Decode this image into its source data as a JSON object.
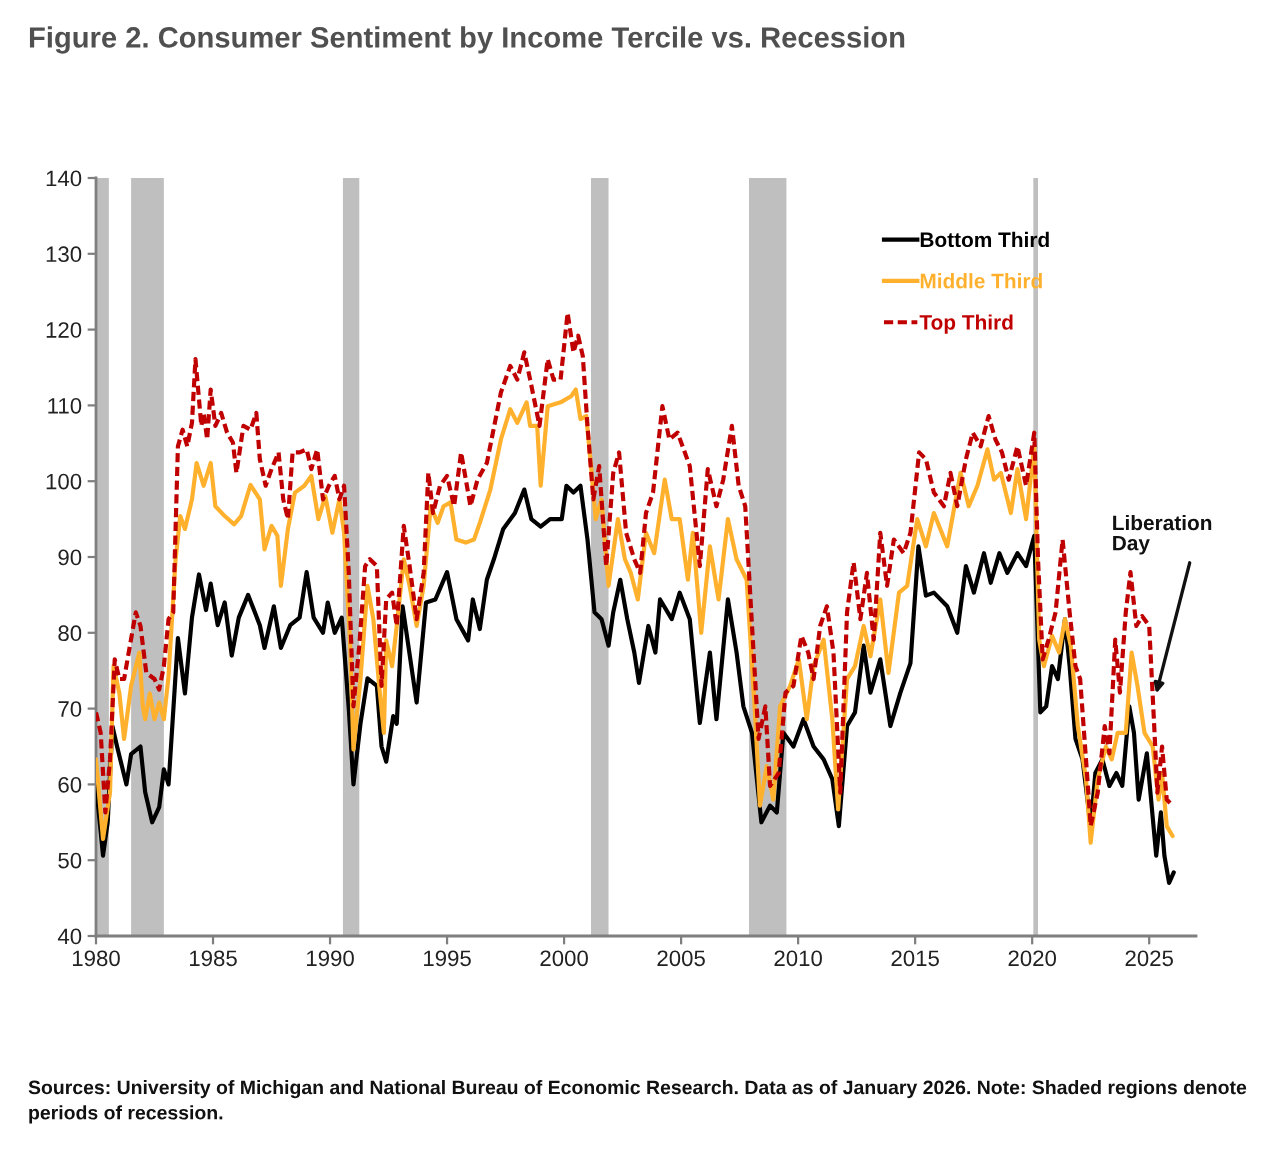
{
  "chart_data": {
    "type": "line",
    "title": "Figure 2. Consumer Sentiment by Income Tercile vs. Recession",
    "xlim": [
      1980,
      2027
    ],
    "xticks": [
      1980,
      1985,
      1990,
      1995,
      2000,
      2005,
      2010,
      2015,
      2020,
      2025
    ],
    "ylim": [
      40,
      140
    ],
    "yticks": [
      40,
      50,
      60,
      70,
      80,
      90,
      100,
      110,
      120,
      130,
      140
    ],
    "legend": "top right",
    "bands": [
      {
        "axis": "x",
        "from": 1980.0,
        "to": 1980.55,
        "color": "#bfbfbf"
      },
      {
        "axis": "x",
        "from": 1981.5,
        "to": 1982.9,
        "color": "#bfbfbf"
      },
      {
        "axis": "x",
        "from": 1990.55,
        "to": 1991.25,
        "color": "#bfbfbf"
      },
      {
        "axis": "x",
        "from": 2001.15,
        "to": 2001.9,
        "color": "#bfbfbf"
      },
      {
        "axis": "x",
        "from": 2007.9,
        "to": 2009.5,
        "color": "#bfbfbf"
      },
      {
        "axis": "x",
        "from": 2020.05,
        "to": 2020.25,
        "color": "#bfbfbf"
      }
    ],
    "annotations": [
      {
        "text": "Liberation\nDay",
        "x": 2025.3,
        "y": 72
      },
      "Sources: University of Michigan and National Bureau of Economic Research. Data as of January 2026. Note: Shaded regions denote periods of recession."
    ],
    "series": [
      {
        "name": "Bottom Third",
        "color": "#000000",
        "line_style": "solid",
        "x": [
          1980.0,
          1980.3,
          1980.5,
          1980.7,
          1980.9,
          1981.3,
          1981.5,
          1981.9,
          1982.1,
          1982.4,
          1982.7,
          1982.9,
          1983.1,
          1983.5,
          1983.8,
          1984.1,
          1984.4,
          1984.7,
          1984.9,
          1985.2,
          1985.5,
          1985.8,
          1986.1,
          1986.5,
          1987.0,
          1987.2,
          1987.6,
          1987.9,
          1988.3,
          1988.7,
          1989.0,
          1989.3,
          1989.7,
          1989.9,
          1990.2,
          1990.5,
          1990.8,
          1991.0,
          1991.3,
          1991.6,
          1992.0,
          1992.2,
          1992.4,
          1992.7,
          1992.85,
          1993.1,
          1993.7,
          1994.1,
          1994.5,
          1995.0,
          1995.4,
          1995.9,
          1996.1,
          1996.4,
          1996.7,
          1997.0,
          1997.4,
          1997.9,
          1998.3,
          1998.6,
          1999.0,
          1999.4,
          1999.9,
          2000.1,
          2000.4,
          2000.7,
          2001.0,
          2001.3,
          2001.6,
          2001.9,
          2002.1,
          2002.4,
          2002.7,
          2003.0,
          2003.2,
          2003.6,
          2003.9,
          2004.1,
          2004.6,
          2004.94,
          2005.37,
          2005.8,
          2006.23,
          2006.51,
          2007.0,
          2007.37,
          2007.66,
          2008.03,
          2008.43,
          2008.8,
          2009.09,
          2009.37,
          2009.8,
          2010.23,
          2010.66,
          2011.09,
          2011.46,
          2011.74,
          2012.09,
          2012.43,
          2012.8,
          2013.09,
          2013.51,
          2013.94,
          2014.37,
          2014.8,
          2015.14,
          2015.46,
          2015.8,
          2016.37,
          2016.8,
          2017.17,
          2017.51,
          2017.94,
          2018.23,
          2018.6,
          2018.94,
          2019.37,
          2019.74,
          2020.09,
          2020.35,
          2020.6,
          2020.85,
          2021.1,
          2021.4,
          2021.6,
          2021.85,
          2022.15,
          2022.5,
          2022.7,
          2023.0,
          2023.3,
          2023.6,
          2023.85,
          2024.15,
          2024.35,
          2024.55,
          2024.9,
          2025.3,
          2025.5,
          2025.65,
          2025.85,
          2026.05
        ],
        "values": [
          60,
          50.6,
          55,
          67.7,
          65,
          60,
          64,
          65,
          59,
          55,
          57,
          62,
          60,
          79.3,
          72,
          82,
          87.7,
          83,
          86.5,
          81,
          84,
          77,
          82,
          85,
          81,
          78,
          83.5,
          78,
          81,
          82,
          88,
          82,
          80,
          84,
          80,
          82,
          70,
          60,
          68,
          74,
          73,
          65,
          63,
          69,
          68,
          83.5,
          70.8,
          84,
          84.4,
          88,
          81.8,
          79,
          84.4,
          80.5,
          87,
          89.7,
          93.7,
          95.8,
          98.9,
          95,
          94,
          95,
          95,
          99.4,
          98.5,
          99.4,
          92.3,
          82.7,
          81.8,
          78.3,
          82.7,
          87,
          81.8,
          77.4,
          73.4,
          80.9,
          77.4,
          84.4,
          81.8,
          85.3,
          81.8,
          68.1,
          77.4,
          68.6,
          84.4,
          77.4,
          70.3,
          66.8,
          55,
          57.2,
          56.3,
          66.8,
          65,
          68.6,
          65,
          63.3,
          60.7,
          54.5,
          67.7,
          69.5,
          78.3,
          72.1,
          76.5,
          67.7,
          72.1,
          76,
          91.4,
          84.9,
          85.3,
          83.5,
          80,
          88.8,
          85.3,
          90.5,
          86.6,
          90.5,
          87.9,
          90.5,
          88.8,
          92.8,
          69.5,
          70.3,
          75.6,
          73.9,
          81.8,
          75.6,
          66,
          63.3,
          54.5,
          61.5,
          63.3,
          59.8,
          61.5,
          59.8,
          70.3,
          66.8,
          58,
          64.1,
          50.6,
          56.3,
          50.6,
          47,
          48.4
        ]
      },
      {
        "name": "Middle Third",
        "color": "#ffb12e",
        "line_style": "solid",
        "x": [
          1980.0,
          1980.3,
          1980.6,
          1980.75,
          1981.0,
          1981.2,
          1981.5,
          1981.85,
          1982.0,
          1982.1,
          1982.3,
          1982.5,
          1982.7,
          1982.9,
          1983.1,
          1983.4,
          1983.6,
          1983.8,
          1984.1,
          1984.3,
          1984.6,
          1984.9,
          1985.1,
          1985.5,
          1985.9,
          1986.2,
          1986.6,
          1987.0,
          1987.2,
          1987.5,
          1987.75,
          1987.9,
          1988.2,
          1988.5,
          1988.9,
          1989.2,
          1989.5,
          1989.8,
          1990.1,
          1990.4,
          1990.6,
          1990.85,
          1991.0,
          1991.3,
          1991.6,
          1991.85,
          1992.1,
          1992.3,
          1992.4,
          1992.65,
          1992.85,
          1993.15,
          1993.4,
          1993.7,
          1994.0,
          1994.3,
          1994.6,
          1994.85,
          1995.15,
          1995.4,
          1995.8,
          1996.15,
          1996.4,
          1996.85,
          1997.3,
          1997.7,
          1998.0,
          1998.4,
          1998.55,
          1998.85,
          1999.0,
          1999.3,
          1999.85,
          2000.3,
          2000.5,
          2000.7,
          2000.95,
          2001.15,
          2001.35,
          2001.6,
          2001.9,
          2002.3,
          2002.6,
          2002.85,
          2003.15,
          2003.5,
          2003.85,
          2004.3,
          2004.6,
          2004.94,
          2005.29,
          2005.5,
          2005.86,
          2006.23,
          2006.6,
          2007.0,
          2007.37,
          2007.8,
          2008.14,
          2008.37,
          2008.66,
          2008.94,
          2009.23,
          2009.66,
          2010.03,
          2010.37,
          2010.66,
          2011.09,
          2011.46,
          2011.71,
          2012.09,
          2012.43,
          2012.8,
          2013.09,
          2013.51,
          2013.86,
          2014.31,
          2014.66,
          2015.09,
          2015.46,
          2015.8,
          2016.37,
          2016.94,
          2017.29,
          2017.66,
          2018.09,
          2018.37,
          2018.66,
          2019.09,
          2019.37,
          2019.74,
          2020.09,
          2020.3,
          2020.5,
          2020.85,
          2021.15,
          2021.4,
          2021.65,
          2021.95,
          2022.3,
          2022.5,
          2022.8,
          2023.15,
          2023.4,
          2023.65,
          2024.0,
          2024.25,
          2024.5,
          2024.8,
          2025.15,
          2025.4,
          2025.55,
          2025.75,
          2026.0
        ],
        "values": [
          63.3,
          52.8,
          59,
          75.6,
          72,
          66,
          73,
          77.4,
          70.3,
          68.6,
          72,
          68.6,
          70.8,
          68.6,
          74.3,
          89.7,
          95.4,
          93.7,
          97.6,
          102.4,
          99.4,
          102.4,
          96.7,
          95.4,
          94.3,
          95.4,
          99.5,
          97.6,
          91,
          94.1,
          92.8,
          86.2,
          93.7,
          98.5,
          99.4,
          100.7,
          95,
          98,
          93.2,
          97.6,
          93.2,
          79.1,
          64.6,
          73.9,
          86.2,
          81.8,
          73,
          66.8,
          79,
          75.6,
          80.9,
          89.7,
          86.2,
          80.9,
          86.2,
          96.7,
          94.5,
          96.7,
          97.2,
          92.3,
          91.9,
          92.3,
          94.5,
          98.9,
          105.5,
          109.5,
          107.7,
          110.4,
          107.3,
          107.3,
          99.4,
          109.9,
          110.4,
          111.2,
          112.1,
          108.2,
          108.6,
          102,
          95,
          97.6,
          86.2,
          95,
          89.7,
          87.9,
          84.4,
          93.2,
          90.5,
          100.2,
          95,
          95,
          87,
          93.2,
          80,
          91.4,
          84.4,
          95,
          89.7,
          87,
          70.3,
          57.2,
          62.4,
          58,
          70.3,
          73,
          76.5,
          68.6,
          75.6,
          79.1,
          68.6,
          56.7,
          73.9,
          75.6,
          80.9,
          76.9,
          84.4,
          74.7,
          85.3,
          86.2,
          95,
          91.4,
          95.8,
          91.4,
          101.1,
          96.7,
          99.4,
          104.2,
          100.2,
          101.1,
          95.8,
          101.6,
          95,
          104.6,
          79.1,
          75.6,
          79.6,
          77.4,
          81.8,
          78.3,
          67.7,
          60.7,
          52.3,
          60.7,
          65,
          63.3,
          66.8,
          66.8,
          77.4,
          73,
          66.8,
          65,
          58,
          61.5,
          54.5,
          53.2
        ]
      },
      {
        "name": "Top Third",
        "color": "#c00000",
        "line_style": "dashed",
        "x": [
          1980.0,
          1980.2,
          1980.4,
          1980.6,
          1980.8,
          1981.0,
          1981.2,
          1981.45,
          1981.7,
          1981.9,
          1982.15,
          1982.5,
          1982.7,
          1982.9,
          1983.1,
          1983.3,
          1983.5,
          1983.7,
          1983.9,
          1984.1,
          1984.25,
          1984.5,
          1984.6,
          1984.75,
          1984.9,
          1985.1,
          1985.35,
          1985.6,
          1985.85,
          1986.0,
          1986.3,
          1986.6,
          1986.85,
          1987.0,
          1987.25,
          1987.5,
          1987.8,
          1988.0,
          1988.2,
          1988.4,
          1988.7,
          1989.0,
          1989.2,
          1989.45,
          1989.7,
          1989.95,
          1990.2,
          1990.4,
          1990.6,
          1990.8,
          1991.0,
          1991.25,
          1991.5,
          1991.7,
          1992.0,
          1992.2,
          1992.4,
          1992.65,
          1992.85,
          1993.15,
          1993.4,
          1993.7,
          1994.0,
          1994.2,
          1994.4,
          1994.7,
          1995.0,
          1995.3,
          1995.6,
          1996.0,
          1996.3,
          1996.7,
          1997.3,
          1997.7,
          1998.0,
          1998.3,
          1998.55,
          1998.95,
          1999.3,
          1999.55,
          1999.85,
          2000.15,
          2000.4,
          2000.6,
          2000.8,
          2001.0,
          2001.25,
          2001.5,
          2001.8,
          2002.1,
          2002.35,
          2002.65,
          2003.0,
          2003.25,
          2003.5,
          2003.8,
          2004.2,
          2004.5,
          2004.85,
          2005.37,
          2005.8,
          2006.14,
          2006.51,
          2006.8,
          2007.17,
          2007.46,
          2007.74,
          2008.03,
          2008.31,
          2008.6,
          2008.8,
          2009.17,
          2009.46,
          2009.8,
          2010.14,
          2010.43,
          2010.66,
          2010.94,
          2011.23,
          2011.51,
          2011.8,
          2012.09,
          2012.37,
          2012.66,
          2012.94,
          2013.23,
          2013.51,
          2013.8,
          2014.09,
          2014.51,
          2014.8,
          2015.17,
          2015.46,
          2015.8,
          2016.23,
          2016.51,
          2016.8,
          2017.17,
          2017.46,
          2017.8,
          2018.14,
          2018.43,
          2018.71,
          2019.0,
          2019.37,
          2019.74,
          2020.09,
          2020.25,
          2020.45,
          2020.7,
          2021.0,
          2021.3,
          2021.6,
          2021.85,
          2022.05,
          2022.3,
          2022.5,
          2022.8,
          2023.1,
          2023.3,
          2023.55,
          2023.75,
          2024.0,
          2024.2,
          2024.45,
          2024.7,
          2025.0,
          2025.2,
          2025.35,
          2025.55,
          2025.75,
          2026.0
        ],
        "values": [
          69.5,
          66.8,
          56.3,
          63.3,
          76.5,
          73.9,
          73.9,
          78.3,
          82.7,
          80.9,
          74.7,
          73.9,
          72.5,
          75.6,
          81.8,
          82.7,
          104.6,
          106.8,
          104.6,
          107.7,
          116.1,
          107.3,
          109,
          105.5,
          112.1,
          107.3,
          109,
          106.4,
          105.1,
          101.1,
          107.3,
          106.8,
          109,
          102.9,
          99.4,
          101.6,
          103.8,
          97.6,
          95,
          103.8,
          103.8,
          104.2,
          101.6,
          104.2,
          97.6,
          99.4,
          100.7,
          97.6,
          99.4,
          87.9,
          70.3,
          78.3,
          88.8,
          89.7,
          88.8,
          73,
          84.4,
          85.3,
          80.9,
          94.1,
          88.8,
          81.8,
          87.9,
          101.1,
          95.8,
          99.4,
          100.7,
          96.7,
          103.8,
          96.7,
          100.2,
          102.4,
          111.7,
          115.2,
          113.4,
          117,
          113.4,
          107.3,
          116.1,
          113.4,
          113.4,
          122.2,
          117,
          119.2,
          116.5,
          107.3,
          97.6,
          102,
          88.8,
          101.1,
          103.8,
          93.2,
          89.7,
          87.9,
          95.8,
          98.5,
          109.9,
          105.5,
          106.4,
          102,
          88.8,
          101.6,
          96.7,
          100.2,
          107.3,
          99.4,
          96.7,
          80.9,
          66,
          70.3,
          59.8,
          61.5,
          72.1,
          73,
          79.6,
          77.4,
          73.9,
          80.9,
          83.5,
          77.4,
          58.9,
          82.7,
          89.3,
          81.8,
          87.9,
          79.1,
          93.2,
          86.2,
          92.3,
          90.5,
          93.2,
          103.8,
          102.9,
          98.5,
          96.7,
          101.1,
          96.7,
          102.9,
          106.4,
          104.6,
          108.6,
          105.5,
          103.8,
          100.2,
          104.6,
          99.4,
          106.4,
          89.7,
          76.5,
          79.1,
          82.7,
          92.3,
          82.7,
          75.6,
          73.9,
          63.3,
          54.5,
          58.9,
          67.7,
          64.1,
          79.1,
          72.1,
          82.7,
          88,
          80.9,
          82.2,
          80.9,
          68.6,
          58.9,
          65,
          58,
          57.2
        ]
      }
    ]
  }
}
